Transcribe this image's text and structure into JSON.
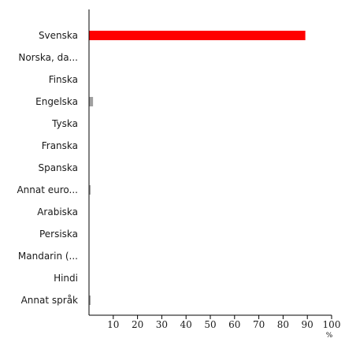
{
  "chart_data": {
    "type": "bar",
    "orientation": "horizontal",
    "categories": [
      "Svenska",
      "Norska, da...",
      "Finska",
      "Engelska",
      "Tyska",
      "Franska",
      "Spanska",
      "Annat euro...",
      "Arabiska",
      "Persiska",
      "Mandarin (...",
      "Hindi",
      "Annat språk"
    ],
    "values": [
      89,
      0,
      0,
      1.5,
      0,
      0,
      0,
      0.5,
      0,
      0,
      0,
      0,
      0.5
    ],
    "xlim": [
      0,
      100
    ],
    "xticks": [
      10,
      20,
      30,
      40,
      50,
      60,
      70,
      80,
      90,
      100
    ],
    "xunit": "%",
    "grid": false,
    "colors": {
      "highlight": "#ff0000",
      "default": "#a0a0a0",
      "axis": "#000000"
    },
    "highlight_index": 0
  }
}
